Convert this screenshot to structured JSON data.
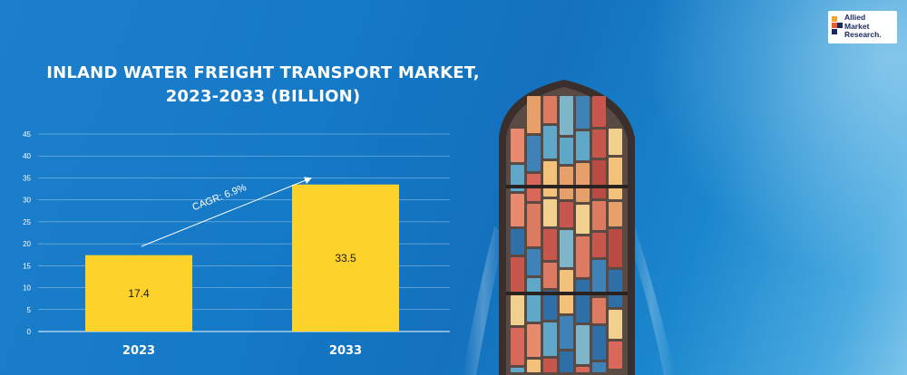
{
  "title": {
    "line1": "INLAND WATER FREIGHT TRANSPORT MARKET,",
    "line2": "2023-2033 (BILLION)"
  },
  "logo": {
    "lines": [
      "Allied",
      "Market",
      "Research."
    ]
  },
  "colors": {
    "bar": "#FDD22B",
    "background": "#1479c6",
    "text": "#ffffff"
  },
  "chart_data": {
    "type": "bar",
    "title": "INLAND WATER FREIGHT TRANSPORT MARKET, 2023-2033 (BILLION)",
    "categories": [
      "2023",
      "2033"
    ],
    "values": [
      17.4,
      33.5
    ],
    "data_labels": [
      "17.4",
      "33.5"
    ],
    "ylim": [
      0,
      45
    ],
    "yticks": [
      "0",
      "5",
      "10",
      "15",
      "20",
      "25",
      "30",
      "35",
      "40",
      "45"
    ],
    "grid": true,
    "annotation": "CAGR: 6.9%"
  }
}
